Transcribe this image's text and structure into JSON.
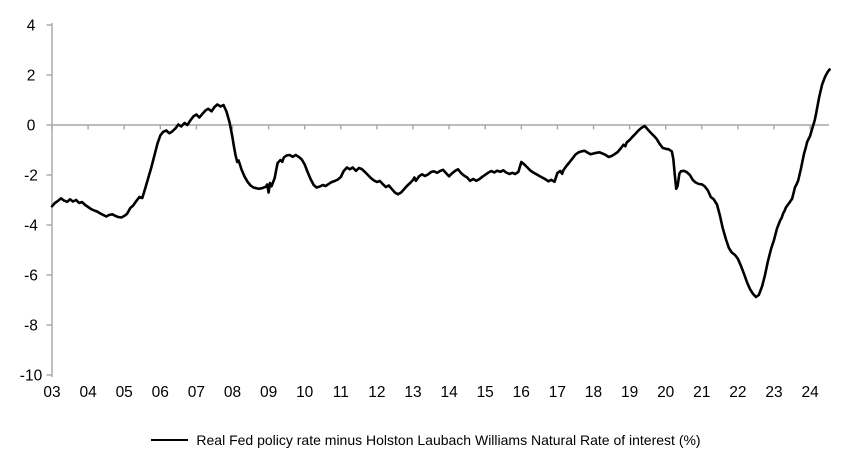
{
  "chart_data": {
    "type": "line",
    "title": "",
    "xlabel": "",
    "ylabel": "",
    "legend_position": "bottom-center",
    "grid": "zero-baseline-only",
    "axis_color": "#a6a6a6",
    "background_color": "#ffffff",
    "ylim": [
      -10,
      4
    ],
    "xlim": [
      2003,
      2024.6
    ],
    "y_tick_values": [
      4,
      2,
      0,
      -2,
      -4,
      -6,
      -8,
      -10
    ],
    "y_tick_labels": [
      "4",
      "2",
      "0",
      "-2",
      "-4",
      "-6",
      "-8",
      "-10"
    ],
    "x_tick_labels": [
      "03",
      "04",
      "05",
      "06",
      "07",
      "08",
      "09",
      "10",
      "11",
      "12",
      "13",
      "14",
      "15",
      "16",
      "17",
      "18",
      "19",
      "20",
      "21",
      "22",
      "23",
      "24"
    ],
    "series": [
      {
        "name": "Real Fed policy rate minus Holston Laubach Williams Natural Rate of interest (%)",
        "color": "#000000",
        "points": [
          [
            2003.0,
            -3.25
          ],
          [
            2003.08,
            -3.12
          ],
          [
            2003.17,
            -3.03
          ],
          [
            2003.25,
            -2.93
          ],
          [
            2003.33,
            -3.02
          ],
          [
            2003.42,
            -3.07
          ],
          [
            2003.5,
            -2.97
          ],
          [
            2003.58,
            -3.06
          ],
          [
            2003.67,
            -3.0
          ],
          [
            2003.75,
            -3.12
          ],
          [
            2003.83,
            -3.08
          ],
          [
            2003.92,
            -3.2
          ],
          [
            2004.0,
            -3.28
          ],
          [
            2004.08,
            -3.36
          ],
          [
            2004.17,
            -3.42
          ],
          [
            2004.25,
            -3.46
          ],
          [
            2004.33,
            -3.53
          ],
          [
            2004.42,
            -3.6
          ],
          [
            2004.5,
            -3.66
          ],
          [
            2004.58,
            -3.6
          ],
          [
            2004.67,
            -3.57
          ],
          [
            2004.75,
            -3.63
          ],
          [
            2004.83,
            -3.68
          ],
          [
            2004.92,
            -3.7
          ],
          [
            2005.0,
            -3.64
          ],
          [
            2005.08,
            -3.55
          ],
          [
            2005.17,
            -3.32
          ],
          [
            2005.25,
            -3.22
          ],
          [
            2005.33,
            -3.05
          ],
          [
            2005.42,
            -2.88
          ],
          [
            2005.5,
            -2.92
          ],
          [
            2005.58,
            -2.55
          ],
          [
            2005.67,
            -2.1
          ],
          [
            2005.75,
            -1.7
          ],
          [
            2005.83,
            -1.25
          ],
          [
            2005.92,
            -0.75
          ],
          [
            2006.0,
            -0.42
          ],
          [
            2006.08,
            -0.27
          ],
          [
            2006.17,
            -0.22
          ],
          [
            2006.25,
            -0.33
          ],
          [
            2006.33,
            -0.26
          ],
          [
            2006.42,
            -0.13
          ],
          [
            2006.5,
            0.02
          ],
          [
            2006.58,
            -0.06
          ],
          [
            2006.67,
            0.08
          ],
          [
            2006.75,
            0.0
          ],
          [
            2006.83,
            0.18
          ],
          [
            2006.92,
            0.35
          ],
          [
            2007.0,
            0.42
          ],
          [
            2007.08,
            0.3
          ],
          [
            2007.17,
            0.45
          ],
          [
            2007.25,
            0.58
          ],
          [
            2007.33,
            0.65
          ],
          [
            2007.42,
            0.55
          ],
          [
            2007.5,
            0.72
          ],
          [
            2007.58,
            0.82
          ],
          [
            2007.67,
            0.74
          ],
          [
            2007.75,
            0.8
          ],
          [
            2007.83,
            0.55
          ],
          [
            2007.92,
            0.1
          ],
          [
            2008.0,
            -0.5
          ],
          [
            2008.04,
            -0.85
          ],
          [
            2008.08,
            -1.18
          ],
          [
            2008.13,
            -1.48
          ],
          [
            2008.17,
            -1.42
          ],
          [
            2008.21,
            -1.6
          ],
          [
            2008.25,
            -1.78
          ],
          [
            2008.33,
            -2.05
          ],
          [
            2008.42,
            -2.28
          ],
          [
            2008.5,
            -2.42
          ],
          [
            2008.58,
            -2.5
          ],
          [
            2008.67,
            -2.53
          ],
          [
            2008.75,
            -2.55
          ],
          [
            2008.83,
            -2.52
          ],
          [
            2008.92,
            -2.47
          ],
          [
            2008.96,
            -2.38
          ],
          [
            2009.0,
            -2.7
          ],
          [
            2009.04,
            -2.32
          ],
          [
            2009.08,
            -2.45
          ],
          [
            2009.17,
            -2.12
          ],
          [
            2009.21,
            -1.8
          ],
          [
            2009.25,
            -1.52
          ],
          [
            2009.33,
            -1.4
          ],
          [
            2009.38,
            -1.47
          ],
          [
            2009.42,
            -1.3
          ],
          [
            2009.5,
            -1.22
          ],
          [
            2009.58,
            -1.2
          ],
          [
            2009.67,
            -1.27
          ],
          [
            2009.75,
            -1.2
          ],
          [
            2009.83,
            -1.27
          ],
          [
            2009.92,
            -1.38
          ],
          [
            2010.0,
            -1.58
          ],
          [
            2010.08,
            -1.88
          ],
          [
            2010.17,
            -2.18
          ],
          [
            2010.25,
            -2.4
          ],
          [
            2010.33,
            -2.5
          ],
          [
            2010.42,
            -2.46
          ],
          [
            2010.5,
            -2.4
          ],
          [
            2010.58,
            -2.44
          ],
          [
            2010.67,
            -2.35
          ],
          [
            2010.75,
            -2.28
          ],
          [
            2010.83,
            -2.24
          ],
          [
            2010.92,
            -2.18
          ],
          [
            2011.0,
            -2.08
          ],
          [
            2011.08,
            -1.84
          ],
          [
            2011.17,
            -1.7
          ],
          [
            2011.25,
            -1.77
          ],
          [
            2011.33,
            -1.7
          ],
          [
            2011.42,
            -1.83
          ],
          [
            2011.5,
            -1.72
          ],
          [
            2011.58,
            -1.76
          ],
          [
            2011.67,
            -1.88
          ],
          [
            2011.75,
            -2.0
          ],
          [
            2011.83,
            -2.12
          ],
          [
            2011.92,
            -2.22
          ],
          [
            2012.0,
            -2.28
          ],
          [
            2012.08,
            -2.24
          ],
          [
            2012.17,
            -2.37
          ],
          [
            2012.25,
            -2.48
          ],
          [
            2012.33,
            -2.42
          ],
          [
            2012.42,
            -2.57
          ],
          [
            2012.5,
            -2.7
          ],
          [
            2012.58,
            -2.77
          ],
          [
            2012.67,
            -2.7
          ],
          [
            2012.75,
            -2.57
          ],
          [
            2012.83,
            -2.44
          ],
          [
            2012.92,
            -2.32
          ],
          [
            2013.0,
            -2.2
          ],
          [
            2013.04,
            -2.1
          ],
          [
            2013.08,
            -2.23
          ],
          [
            2013.17,
            -2.05
          ],
          [
            2013.25,
            -1.97
          ],
          [
            2013.33,
            -2.04
          ],
          [
            2013.42,
            -1.97
          ],
          [
            2013.5,
            -1.88
          ],
          [
            2013.58,
            -1.85
          ],
          [
            2013.67,
            -1.91
          ],
          [
            2013.75,
            -1.84
          ],
          [
            2013.83,
            -1.79
          ],
          [
            2013.92,
            -1.93
          ],
          [
            2014.0,
            -2.05
          ],
          [
            2014.08,
            -1.93
          ],
          [
            2014.17,
            -1.83
          ],
          [
            2014.25,
            -1.77
          ],
          [
            2014.33,
            -1.92
          ],
          [
            2014.42,
            -2.03
          ],
          [
            2014.5,
            -2.1
          ],
          [
            2014.58,
            -2.23
          ],
          [
            2014.67,
            -2.16
          ],
          [
            2014.75,
            -2.23
          ],
          [
            2014.83,
            -2.17
          ],
          [
            2014.92,
            -2.07
          ],
          [
            2015.0,
            -1.99
          ],
          [
            2015.08,
            -1.91
          ],
          [
            2015.17,
            -1.84
          ],
          [
            2015.25,
            -1.9
          ],
          [
            2015.33,
            -1.83
          ],
          [
            2015.42,
            -1.87
          ],
          [
            2015.5,
            -1.81
          ],
          [
            2015.58,
            -1.9
          ],
          [
            2015.67,
            -1.96
          ],
          [
            2015.75,
            -1.91
          ],
          [
            2015.83,
            -1.96
          ],
          [
            2015.92,
            -1.87
          ],
          [
            2016.0,
            -1.48
          ],
          [
            2016.08,
            -1.57
          ],
          [
            2016.17,
            -1.7
          ],
          [
            2016.25,
            -1.82
          ],
          [
            2016.33,
            -1.9
          ],
          [
            2016.42,
            -1.97
          ],
          [
            2016.5,
            -2.04
          ],
          [
            2016.58,
            -2.1
          ],
          [
            2016.67,
            -2.17
          ],
          [
            2016.75,
            -2.25
          ],
          [
            2016.83,
            -2.19
          ],
          [
            2016.92,
            -2.27
          ],
          [
            2017.0,
            -1.92
          ],
          [
            2017.08,
            -1.84
          ],
          [
            2017.13,
            -1.95
          ],
          [
            2017.17,
            -1.8
          ],
          [
            2017.25,
            -1.64
          ],
          [
            2017.33,
            -1.5
          ],
          [
            2017.42,
            -1.33
          ],
          [
            2017.5,
            -1.18
          ],
          [
            2017.58,
            -1.1
          ],
          [
            2017.67,
            -1.05
          ],
          [
            2017.75,
            -1.03
          ],
          [
            2017.83,
            -1.1
          ],
          [
            2017.92,
            -1.17
          ],
          [
            2018.0,
            -1.14
          ],
          [
            2018.08,
            -1.11
          ],
          [
            2018.17,
            -1.09
          ],
          [
            2018.25,
            -1.14
          ],
          [
            2018.33,
            -1.19
          ],
          [
            2018.42,
            -1.28
          ],
          [
            2018.5,
            -1.24
          ],
          [
            2018.58,
            -1.17
          ],
          [
            2018.67,
            -1.08
          ],
          [
            2018.75,
            -0.94
          ],
          [
            2018.83,
            -0.79
          ],
          [
            2018.88,
            -0.85
          ],
          [
            2018.92,
            -0.7
          ],
          [
            2019.0,
            -0.6
          ],
          [
            2019.08,
            -0.47
          ],
          [
            2019.17,
            -0.34
          ],
          [
            2019.25,
            -0.21
          ],
          [
            2019.33,
            -0.11
          ],
          [
            2019.42,
            -0.04
          ],
          [
            2019.5,
            -0.17
          ],
          [
            2019.58,
            -0.3
          ],
          [
            2019.67,
            -0.43
          ],
          [
            2019.75,
            -0.56
          ],
          [
            2019.83,
            -0.75
          ],
          [
            2019.92,
            -0.92
          ],
          [
            2020.0,
            -0.95
          ],
          [
            2020.08,
            -0.97
          ],
          [
            2020.17,
            -1.05
          ],
          [
            2020.21,
            -1.35
          ],
          [
            2020.25,
            -1.95
          ],
          [
            2020.29,
            -2.55
          ],
          [
            2020.33,
            -2.44
          ],
          [
            2020.38,
            -1.94
          ],
          [
            2020.42,
            -1.85
          ],
          [
            2020.5,
            -1.83
          ],
          [
            2020.58,
            -1.88
          ],
          [
            2020.67,
            -2.0
          ],
          [
            2020.75,
            -2.2
          ],
          [
            2020.83,
            -2.3
          ],
          [
            2020.92,
            -2.36
          ],
          [
            2021.0,
            -2.37
          ],
          [
            2021.08,
            -2.45
          ],
          [
            2021.17,
            -2.62
          ],
          [
            2021.25,
            -2.88
          ],
          [
            2021.33,
            -2.97
          ],
          [
            2021.42,
            -3.18
          ],
          [
            2021.5,
            -3.62
          ],
          [
            2021.58,
            -4.12
          ],
          [
            2021.67,
            -4.58
          ],
          [
            2021.75,
            -4.92
          ],
          [
            2021.83,
            -5.1
          ],
          [
            2021.92,
            -5.2
          ],
          [
            2022.0,
            -5.35
          ],
          [
            2022.08,
            -5.62
          ],
          [
            2022.17,
            -5.95
          ],
          [
            2022.25,
            -6.28
          ],
          [
            2022.33,
            -6.55
          ],
          [
            2022.42,
            -6.76
          ],
          [
            2022.5,
            -6.88
          ],
          [
            2022.58,
            -6.8
          ],
          [
            2022.67,
            -6.45
          ],
          [
            2022.75,
            -6.0
          ],
          [
            2022.83,
            -5.45
          ],
          [
            2022.92,
            -4.95
          ],
          [
            2023.0,
            -4.6
          ],
          [
            2023.08,
            -4.15
          ],
          [
            2023.17,
            -3.82
          ],
          [
            2023.21,
            -3.72
          ],
          [
            2023.25,
            -3.55
          ],
          [
            2023.29,
            -3.44
          ],
          [
            2023.33,
            -3.3
          ],
          [
            2023.38,
            -3.2
          ],
          [
            2023.42,
            -3.12
          ],
          [
            2023.5,
            -2.95
          ],
          [
            2023.54,
            -2.73
          ],
          [
            2023.58,
            -2.5
          ],
          [
            2023.63,
            -2.36
          ],
          [
            2023.67,
            -2.22
          ],
          [
            2023.71,
            -1.98
          ],
          [
            2023.75,
            -1.72
          ],
          [
            2023.79,
            -1.44
          ],
          [
            2023.83,
            -1.15
          ],
          [
            2023.88,
            -0.9
          ],
          [
            2023.92,
            -0.67
          ],
          [
            2024.0,
            -0.44
          ],
          [
            2024.04,
            -0.24
          ],
          [
            2024.08,
            -0.04
          ],
          [
            2024.13,
            0.2
          ],
          [
            2024.17,
            0.48
          ],
          [
            2024.21,
            0.8
          ],
          [
            2024.25,
            1.1
          ],
          [
            2024.29,
            1.36
          ],
          [
            2024.33,
            1.6
          ],
          [
            2024.38,
            1.8
          ],
          [
            2024.42,
            1.95
          ],
          [
            2024.46,
            2.05
          ],
          [
            2024.5,
            2.15
          ],
          [
            2024.54,
            2.22
          ]
        ]
      }
    ]
  }
}
